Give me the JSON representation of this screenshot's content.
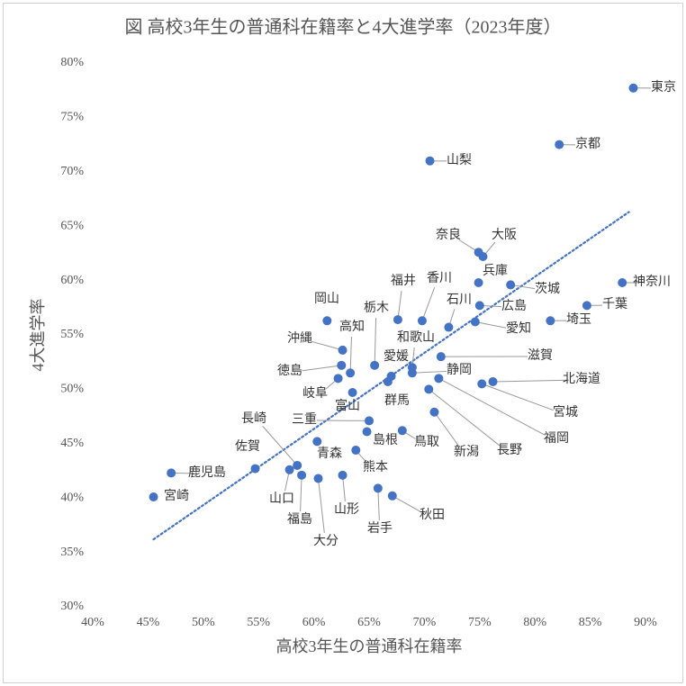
{
  "chart_data": {
    "type": "scatter",
    "title": "図 高校3年生の普通科在籍率と4大進学率（2023年度）",
    "x_label": "高校3年生の普通科在籍率",
    "y_label": "4大進学率",
    "color": "#4472c4",
    "grid": false,
    "xlim": [
      40,
      90
    ],
    "ylim": [
      30,
      80
    ],
    "xticks": [
      {
        "value": 40,
        "label": "40%"
      },
      {
        "value": 45,
        "label": "45%"
      },
      {
        "value": 50,
        "label": "50%"
      },
      {
        "value": 55,
        "label": "55%"
      },
      {
        "value": 60,
        "label": "60%"
      },
      {
        "value": 65,
        "label": "65%"
      },
      {
        "value": 70,
        "label": "70%"
      },
      {
        "value": 75,
        "label": "75%"
      },
      {
        "value": 80,
        "label": "80%"
      },
      {
        "value": 85,
        "label": "85%"
      },
      {
        "value": 90,
        "label": "90%"
      }
    ],
    "yticks": [
      {
        "value": 30,
        "label": "30%"
      },
      {
        "value": 35,
        "label": "35%"
      },
      {
        "value": 40,
        "label": "40%"
      },
      {
        "value": 45,
        "label": "45%"
      },
      {
        "value": 50,
        "label": "50%"
      },
      {
        "value": 55,
        "label": "55%"
      },
      {
        "value": 60,
        "label": "60%"
      },
      {
        "value": 65,
        "label": "65%"
      },
      {
        "value": 70,
        "label": "70%"
      },
      {
        "value": 75,
        "label": "75%"
      },
      {
        "value": 80,
        "label": "80%"
      }
    ],
    "labels": [
      "東京",
      "京都",
      "山梨",
      "奈良",
      "大阪",
      "兵庫",
      "神奈川",
      "茨城",
      "福井",
      "香川",
      "石川",
      "広島",
      "千葉",
      "埼玉",
      "愛知",
      "岡山",
      "高知",
      "沖縄",
      "滋賀",
      "和歌山",
      "愛媛",
      "徳島",
      "栃木",
      "岐阜",
      "富山",
      "群馬",
      "静岡",
      "福岡",
      "長野",
      "新潟",
      "鳥取",
      "島根",
      "三重",
      "北海道",
      "宮城",
      "青森",
      "熊本",
      "長崎",
      "佐賀",
      "山口",
      "福島",
      "山形",
      "大分",
      "岩手",
      "秋田",
      "鹿児島",
      "宮崎"
    ],
    "x": [
      88.9,
      82.2,
      70.5,
      74.9,
      75.3,
      74.9,
      87.9,
      77.8,
      67.6,
      69.8,
      72.2,
      75.0,
      84.7,
      81.4,
      74.6,
      61.2,
      63.3,
      62.6,
      71.5,
      68.9,
      67.0,
      62.5,
      65.5,
      62.2,
      63.5,
      66.7,
      68.9,
      71.3,
      70.4,
      70.9,
      68.0,
      64.8,
      65.0,
      76.2,
      75.2,
      60.3,
      63.8,
      58.5,
      54.7,
      57.8,
      58.9,
      62.6,
      60.4,
      65.8,
      67.1,
      47.1,
      45.5
    ],
    "y": [
      77.7,
      72.5,
      71.0,
      62.6,
      62.2,
      59.8,
      59.8,
      59.6,
      56.4,
      56.3,
      55.7,
      57.7,
      57.7,
      56.3,
      56.2,
      56.3,
      51.5,
      53.6,
      53.0,
      52.0,
      51.2,
      52.2,
      52.2,
      51.0,
      49.7,
      50.7,
      51.5,
      51.0,
      50.0,
      47.9,
      46.2,
      46.1,
      47.1,
      50.7,
      50.5,
      45.2,
      44.4,
      43.0,
      42.7,
      42.6,
      42.1,
      42.1,
      41.8,
      40.9,
      40.2,
      42.3,
      40.1
    ],
    "trendline": {
      "x": [
        45.5,
        88.5
      ],
      "y": [
        36.2,
        66.3
      ]
    }
  }
}
